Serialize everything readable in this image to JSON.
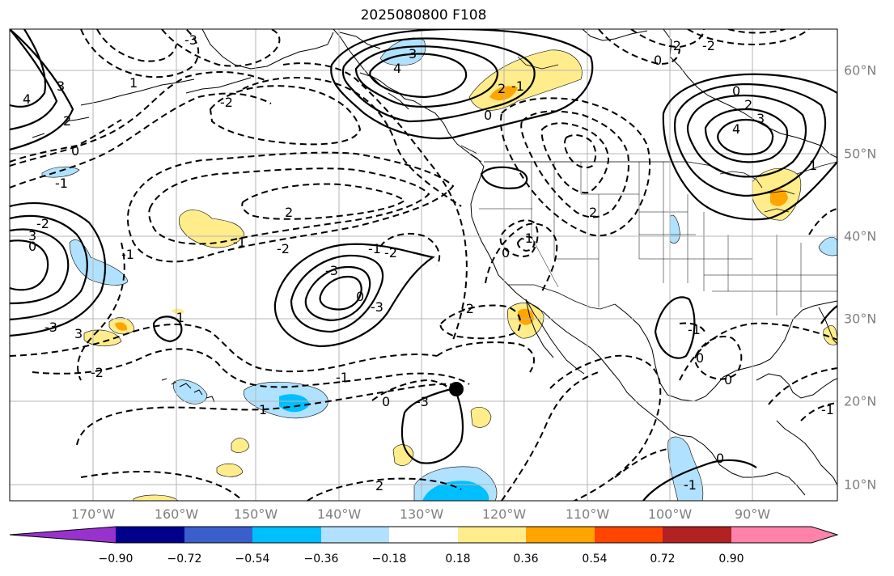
{
  "title": "2025080800 F108",
  "lon_labels": [
    "170°W",
    "160°W",
    "150°W",
    "140°W",
    "130°W",
    "120°W",
    "110°W",
    "100°W",
    "90°W"
  ],
  "lat_labels": [
    "60°N",
    "50°N",
    "40°N",
    "30°N",
    "20°N",
    "10°N"
  ],
  "colorbar": {
    "ticks": [
      "−0.90",
      "−0.72",
      "−0.54",
      "−0.36",
      "−0.18",
      "0.18",
      "0.36",
      "0.54",
      "0.72",
      "0.90"
    ],
    "colors": [
      "#9932cc",
      "#00008b",
      "#3a5fcd",
      "#00bfff",
      "#b0e2ff",
      "#ffffff",
      "#ffec8b",
      "#ffa500",
      "#ff4500",
      "#b22222",
      "#ff82ab"
    ]
  },
  "contour_labels": [
    "3",
    "4",
    "2",
    "1",
    "0",
    "-1",
    "-2",
    "-3",
    "4",
    "3",
    "2",
    "0",
    "-1",
    "3",
    "2",
    "1",
    "0",
    "-2",
    "-2",
    "4",
    "3",
    "0",
    "-2",
    "-3",
    "-1",
    "2",
    "-1",
    "-2",
    "-3",
    "0",
    "-1",
    "-2",
    "-3",
    "-2",
    "-1",
    "0",
    "-3",
    "1",
    "2",
    "3",
    "-2",
    "-1",
    "0",
    "-1",
    "2",
    "0",
    "-1",
    "0",
    "0",
    "-1",
    "-1",
    "0"
  ],
  "marker": {
    "name": "storm-center-dot"
  }
}
